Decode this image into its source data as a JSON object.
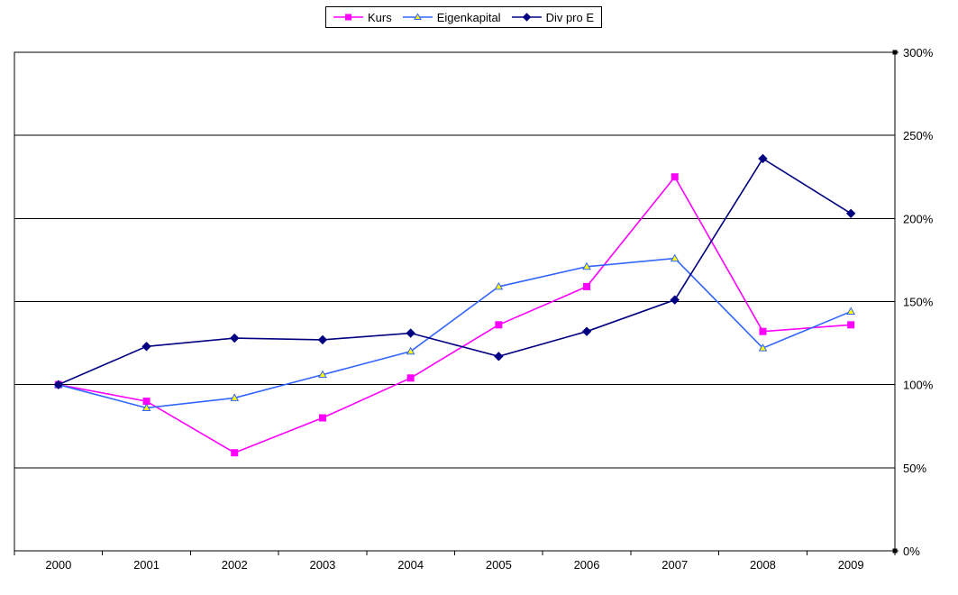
{
  "chart_data": {
    "type": "line",
    "title": "",
    "xlabel": "",
    "ylabel": "",
    "categories": [
      "2000",
      "2001",
      "2002",
      "2003",
      "2004",
      "2005",
      "2006",
      "2007",
      "2008",
      "2009"
    ],
    "series": [
      {
        "name": "Kurs",
        "color": "#FF00FF",
        "marker": "square",
        "marker_fill": "#FF00FF",
        "marker_stroke": "#FF00FF",
        "values": [
          100,
          90,
          59,
          80,
          104,
          136,
          159,
          225,
          132,
          136
        ]
      },
      {
        "name": "Eigenkapital",
        "color": "#3366FF",
        "marker": "triangle",
        "marker_fill": "#FFFF00",
        "marker_stroke": "#3366FF",
        "values": [
          100,
          86,
          92,
          106,
          120,
          159,
          171,
          176,
          122,
          144
        ]
      },
      {
        "name": "Div pro E",
        "color": "#000080",
        "marker": "diamond",
        "marker_fill": "#000080",
        "marker_stroke": "#000080",
        "values": [
          100,
          123,
          128,
          127,
          131,
          117,
          132,
          151,
          236,
          203
        ]
      }
    ],
    "ylim": [
      0,
      300
    ],
    "ytick_step": 50,
    "ytick_labels": [
      "0%",
      "50%",
      "100%",
      "150%",
      "200%",
      "250%",
      "300%"
    ],
    "y_axis_side": "right",
    "grid": "horizontal",
    "gridline_color": "#000000",
    "axis_color": "#000000",
    "text_color": "#000000",
    "background": "#FFFFFF",
    "legend_position": "top-center"
  }
}
